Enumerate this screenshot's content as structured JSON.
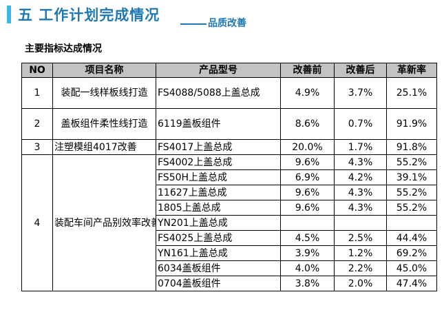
{
  "header": {
    "title": "五 工作计划完成情况",
    "subtitle": "品质改善",
    "accent_color": "#3db7e8",
    "title_color": "#1e78b4"
  },
  "section": {
    "heading": "主要指标达成情况"
  },
  "table": {
    "columns": [
      "NO",
      "项目名称",
      "产品型号",
      "改善前",
      "改善后",
      "革新率"
    ],
    "groups": [
      {
        "no": "1",
        "project": "装配一线样板线打造",
        "rows": [
          {
            "model": "FS4088/5088上盖总成",
            "before": "4.9%",
            "after": "3.7%",
            "rate": "25.1%"
          }
        ]
      },
      {
        "no": "2",
        "project": "盖板组件柔性线打造",
        "rows": [
          {
            "model": "6119盖板组件",
            "before": "8.6%",
            "after": "0.7%",
            "rate": "91.9%"
          }
        ]
      },
      {
        "no": "3",
        "project": "注塑模组4017改善",
        "rows": [
          {
            "model": "FS4017上盖总成",
            "before": "20.0%",
            "after": "1.7%",
            "rate": "91.8%"
          }
        ]
      },
      {
        "no": "4",
        "project": "装配车间产品别效率改善",
        "rows": [
          {
            "model": "FS4002上盖总成",
            "before": "9.6%",
            "after": "4.3%",
            "rate": "55.2%"
          },
          {
            "model": "FS50H上盖总成",
            "before": "6.9%",
            "after": "4.2%",
            "rate": "39.1%"
          },
          {
            "model": "11627上盖总成",
            "before": "9.6%",
            "after": "4.3%",
            "rate": "55.2%"
          },
          {
            "model": "1805上盖总成",
            "before": "9.6%",
            "after": "4.3%",
            "rate": "55.2%"
          },
          {
            "model": "YN201上盖总成",
            "before": "",
            "after": "",
            "rate": ""
          },
          {
            "model": "FS4025上盖总成",
            "before": "4.5%",
            "after": "2.5%",
            "rate": "44.4%"
          },
          {
            "model": "YN161上盖总成",
            "before": "3.9%",
            "after": "1.2%",
            "rate": "69.2%"
          },
          {
            "model": "6034盖板组件",
            "before": "4.0%",
            "after": "2.2%",
            "rate": "45.0%"
          },
          {
            "model": "0704盖板组件",
            "before": "3.8%",
            "after": "2.0%",
            "rate": "47.4%"
          }
        ]
      }
    ]
  }
}
